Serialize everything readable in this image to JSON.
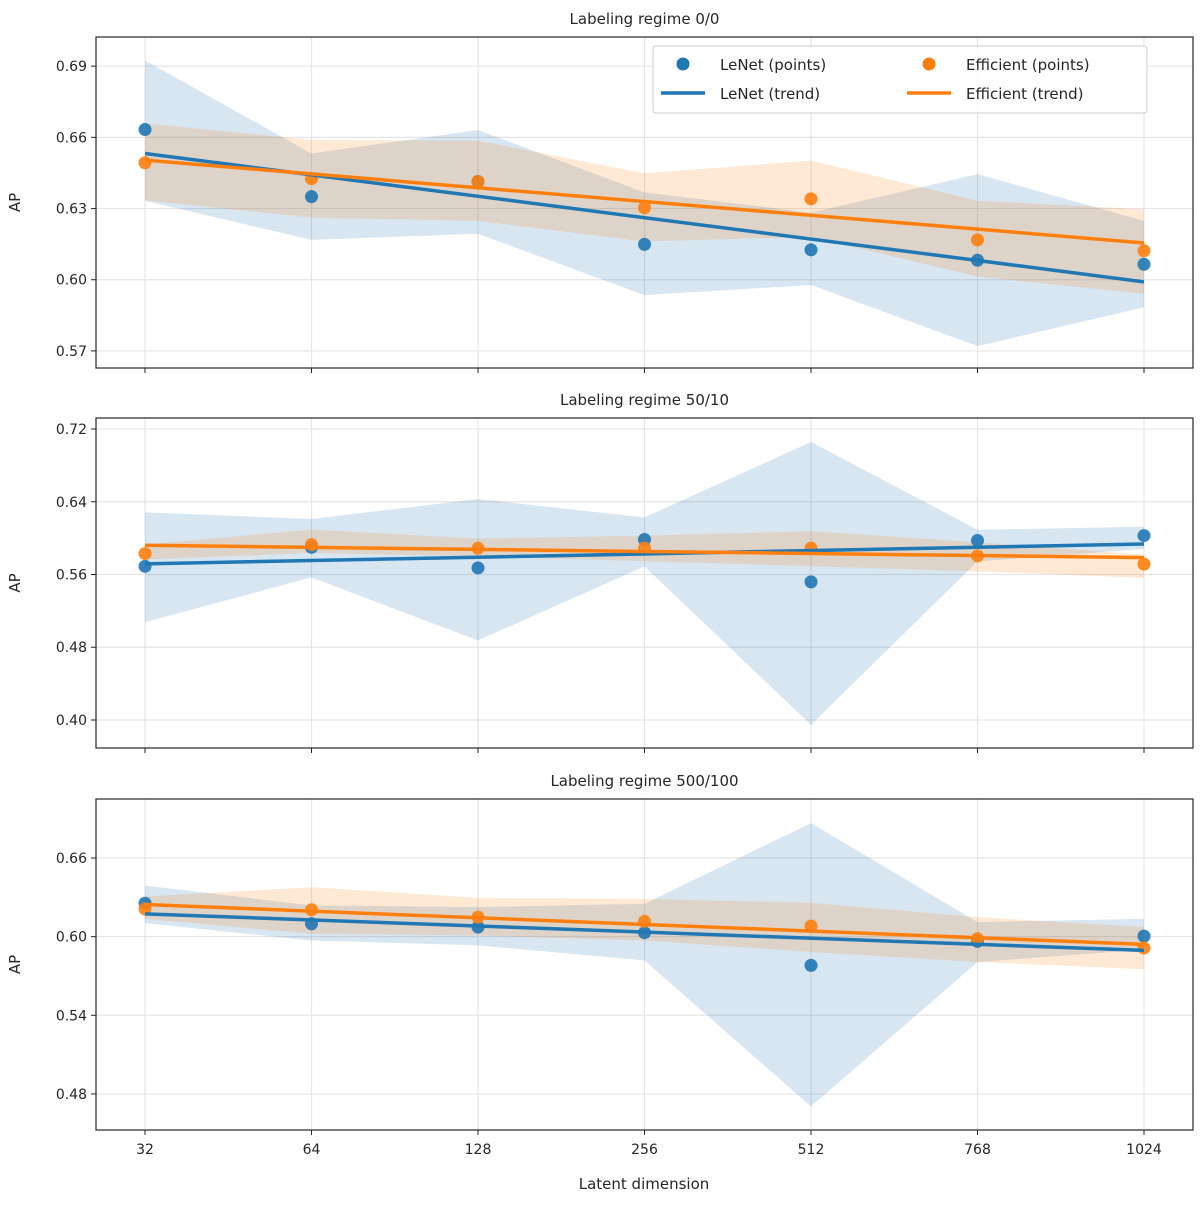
{
  "chart_data": {
    "type": "scatter",
    "xlabel": "Latent dimension",
    "categories": [
      "32",
      "64",
      "128",
      "256",
      "512",
      "768",
      "1024"
    ],
    "grid": true,
    "legend_placement": "upper-right (top panel)",
    "legend": {
      "entries": [
        {
          "label": "LeNet (points)",
          "kind": "marker",
          "color": "#1f77b4"
        },
        {
          "label": "Efficient (points)",
          "kind": "marker",
          "color": "#ff7f0e"
        },
        {
          "label": "LeNet (trend)",
          "kind": "line",
          "color": "#1f77b4"
        },
        {
          "label": "Efficient (trend)",
          "kind": "line",
          "color": "#ff7f0e"
        }
      ]
    },
    "colors": {
      "LeNet": "#1f77b4",
      "Efficient": "#ff7f0e"
    },
    "panels": [
      {
        "title": "Labeling regime 0/0",
        "ylabel": "AP",
        "ylim": [
          0.5628,
          0.7023
        ],
        "yticks": [
          "0.57",
          "0.60",
          "0.63",
          "0.66",
          "0.69"
        ],
        "show_xticklabels": false,
        "series": [
          {
            "name": "LeNet",
            "points": [
              0.6633,
              0.635,
              0.6414,
              0.6149,
              0.6126,
              0.6082,
              0.6065
            ],
            "trend": [
              0.6532,
              0.5991
            ],
            "band_upper": [
              0.6924,
              0.6532,
              0.6631,
              0.6368,
              0.6283,
              0.6445,
              0.6248
            ],
            "band_lower": [
              0.6333,
              0.6168,
              0.6194,
              0.5935,
              0.5978,
              0.572,
              0.5884
            ]
          },
          {
            "name": "Efficient",
            "points": [
              0.6493,
              0.6426,
              0.6414,
              0.6303,
              0.6341,
              0.6168,
              0.6122
            ],
            "trend": [
              0.6504,
              0.6155
            ],
            "band_upper": [
              0.6659,
              0.6589,
              0.6586,
              0.6448,
              0.6502,
              0.6333,
              0.6297
            ],
            "band_lower": [
              0.6335,
              0.6262,
              0.6248,
              0.6161,
              0.6181,
              0.6013,
              0.5941
            ]
          }
        ]
      },
      {
        "title": "Labeling regime 50/10",
        "ylabel": "AP",
        "ylim": [
          0.3692,
          0.7321
        ],
        "yticks": [
          "0.40",
          "0.48",
          "0.56",
          "0.64",
          "0.72"
        ],
        "show_xticklabels": false,
        "series": [
          {
            "name": "LeNet",
            "points": [
              0.569,
              0.5899,
              0.5672,
              0.5985,
              0.5519,
              0.5974,
              0.6028
            ],
            "trend": [
              0.5717,
              0.5936
            ],
            "band_upper": [
              0.6283,
              0.621,
              0.643,
              0.6228,
              0.7057,
              0.6092,
              0.6125
            ],
            "band_lower": [
              0.5076,
              0.5568,
              0.4875,
              0.5689,
              0.3948,
              0.5744,
              0.588
            ]
          },
          {
            "name": "Efficient",
            "points": [
              0.583,
              0.5929,
              0.5888,
              0.589,
              0.589,
              0.5805,
              0.5714
            ],
            "trend": [
              0.5921,
              0.5786
            ],
            "band_upper": [
              0.5929,
              0.6094,
              0.5995,
              0.6028,
              0.6076,
              0.5955,
              0.5819
            ],
            "band_lower": [
              0.5765,
              0.5838,
              0.58,
              0.5746,
              0.5691,
              0.5636,
              0.5563
            ]
          }
        ]
      },
      {
        "title": "Labeling regime 500/100",
        "ylabel": "AP",
        "ylim": [
          0.4525,
          0.705
        ],
        "yticks": [
          "0.48",
          "0.54",
          "0.60",
          "0.66"
        ],
        "show_xticklabels": true,
        "series": [
          {
            "name": "LeNet",
            "points": [
              0.6255,
              0.6098,
              0.6073,
              0.603,
              0.5781,
              0.5964,
              0.6004
            ],
            "trend": [
              0.6174,
              0.5895
            ],
            "band_upper": [
              0.639,
              0.6238,
              0.6225,
              0.625,
              0.6866,
              0.6111,
              0.6136
            ],
            "band_lower": [
              0.6103,
              0.5971,
              0.5933,
              0.5819,
              0.4704,
              0.5807,
              0.59
            ]
          },
          {
            "name": "Efficient",
            "points": [
              0.6212,
              0.6205,
              0.6149,
              0.6116,
              0.608,
              0.5984,
              0.5913
            ],
            "trend": [
              0.6245,
              0.5941
            ],
            "band_upper": [
              0.6306,
              0.6377,
              0.6296,
              0.6288,
              0.6258,
              0.6149,
              0.6073
            ],
            "band_lower": [
              0.6136,
              0.6022,
              0.6009,
              0.5971,
              0.5883,
              0.5807,
              0.5751
            ]
          }
        ]
      }
    ]
  }
}
